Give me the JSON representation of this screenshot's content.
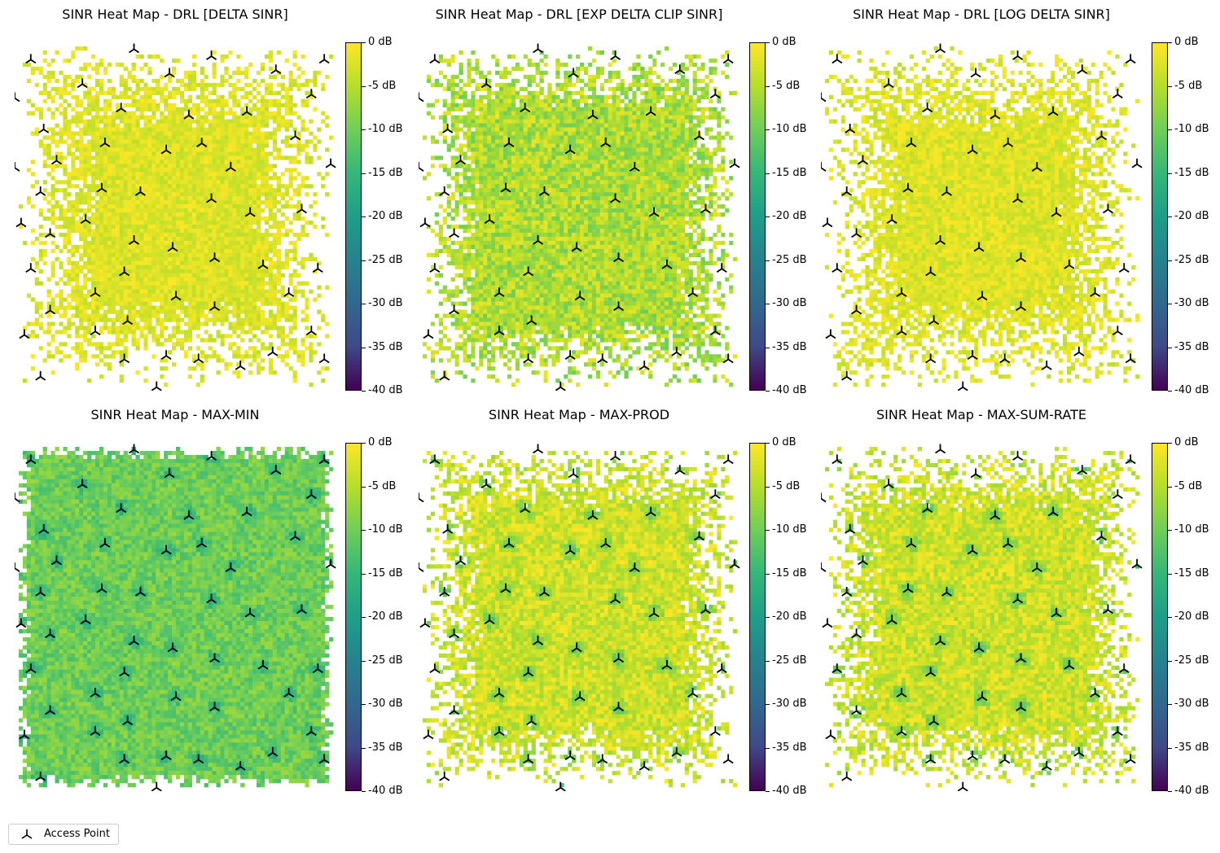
{
  "chart_data": [
    {
      "type": "heatmap",
      "title": "SINR Heat Map - DRL [DELTA SINR]",
      "colorbar": {
        "range": [
          -40,
          0
        ],
        "unit": "dB",
        "ticks": [
          "0 dB",
          "-5 dB",
          "-10 dB",
          "-15 dB",
          "-20 dB",
          "-25 dB",
          "-30 dB",
          "-35 dB",
          "-40 dB"
        ],
        "colormap": "viridis"
      },
      "typical_value_db": -2,
      "variation_db": 2,
      "grid": false
    },
    {
      "type": "heatmap",
      "title": "SINR Heat Map - DRL [EXP DELTA CLIP SINR]",
      "colorbar": {
        "range": [
          -40,
          0
        ],
        "unit": "dB",
        "ticks": [
          "0 dB",
          "-5 dB",
          "-10 dB",
          "-15 dB",
          "-20 dB",
          "-25 dB",
          "-30 dB",
          "-35 dB",
          "-40 dB"
        ],
        "colormap": "viridis"
      },
      "typical_value_db": -5,
      "variation_db": 4,
      "grid": false
    },
    {
      "type": "heatmap",
      "title": "SINR Heat Map - DRL [LOG DELTA SINR]",
      "colorbar": {
        "range": [
          -40,
          0
        ],
        "unit": "dB",
        "ticks": [
          "0 dB",
          "-5 dB",
          "-10 dB",
          "-15 dB",
          "-20 dB",
          "-25 dB",
          "-30 dB",
          "-35 dB",
          "-40 dB"
        ],
        "colormap": "viridis"
      },
      "typical_value_db": -2,
      "variation_db": 2,
      "grid": false
    },
    {
      "type": "heatmap",
      "title": "SINR Heat Map - MAX-MIN",
      "colorbar": {
        "range": [
          -40,
          0
        ],
        "unit": "dB",
        "ticks": [
          "0 dB",
          "-5 dB",
          "-10 dB",
          "-15 dB",
          "-20 dB",
          "-25 dB",
          "-30 dB",
          "-35 dB",
          "-40 dB"
        ],
        "colormap": "viridis"
      },
      "typical_value_db": -9,
      "variation_db": 3,
      "near_ap_value_db": -15,
      "grid": false
    },
    {
      "type": "heatmap",
      "title": "SINR Heat Map - MAX-PROD",
      "colorbar": {
        "range": [
          -40,
          0
        ],
        "unit": "dB",
        "ticks": [
          "0 dB",
          "-5 dB",
          "-10 dB",
          "-15 dB",
          "-20 dB",
          "-25 dB",
          "-30 dB",
          "-35 dB",
          "-40 dB"
        ],
        "colormap": "viridis"
      },
      "typical_value_db": -3,
      "variation_db": 3,
      "near_ap_value_db": -11,
      "grid": false
    },
    {
      "type": "heatmap",
      "title": "SINR Heat Map - MAX-SUM-RATE",
      "colorbar": {
        "range": [
          -40,
          0
        ],
        "unit": "dB",
        "ticks": [
          "0 dB",
          "-5 dB",
          "-10 dB",
          "-15 dB",
          "-20 dB",
          "-25 dB",
          "-30 dB",
          "-35 dB",
          "-40 dB"
        ],
        "colormap": "viridis"
      },
      "typical_value_db": -3,
      "variation_db": 3,
      "near_ap_value_db": -11,
      "grid": false
    }
  ],
  "legend": {
    "label": "Access Point",
    "placement": "bottom-left"
  },
  "colors": {
    "marker": "#000000"
  }
}
